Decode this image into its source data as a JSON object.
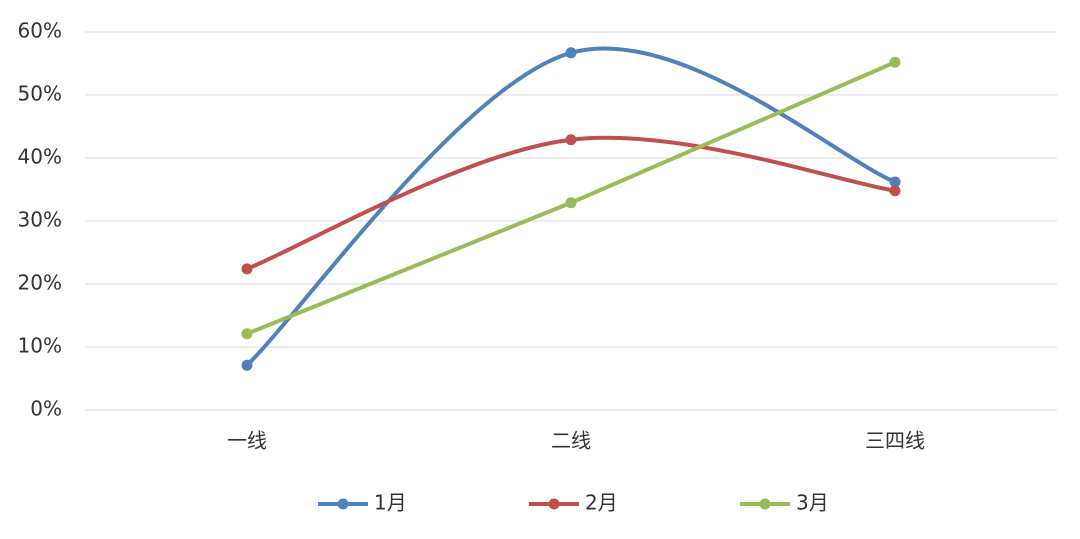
{
  "chart_data": {
    "type": "line",
    "categories": [
      "一线",
      "二线",
      "三四线"
    ],
    "series": [
      {
        "name": "1月",
        "color": "#4f81bd",
        "smooth": true,
        "values": [
          7.1,
          56.7,
          36.2
        ]
      },
      {
        "name": "2月",
        "color": "#c0504d",
        "smooth": true,
        "values": [
          22.4,
          42.9,
          34.8
        ]
      },
      {
        "name": "3月",
        "color": "#9bbb59",
        "smooth": false,
        "values": [
          12.1,
          32.9,
          55.2
        ]
      }
    ],
    "ylim": [
      0,
      60
    ],
    "yticks": [
      {
        "value": 0,
        "label": "0%"
      },
      {
        "value": 10,
        "label": "10%"
      },
      {
        "value": 20,
        "label": "20%"
      },
      {
        "value": 30,
        "label": "30%"
      },
      {
        "value": 40,
        "label": "40%"
      },
      {
        "value": 50,
        "label": "50%"
      },
      {
        "value": 60,
        "label": "60%"
      }
    ],
    "grid": true,
    "legend": "bottom"
  }
}
